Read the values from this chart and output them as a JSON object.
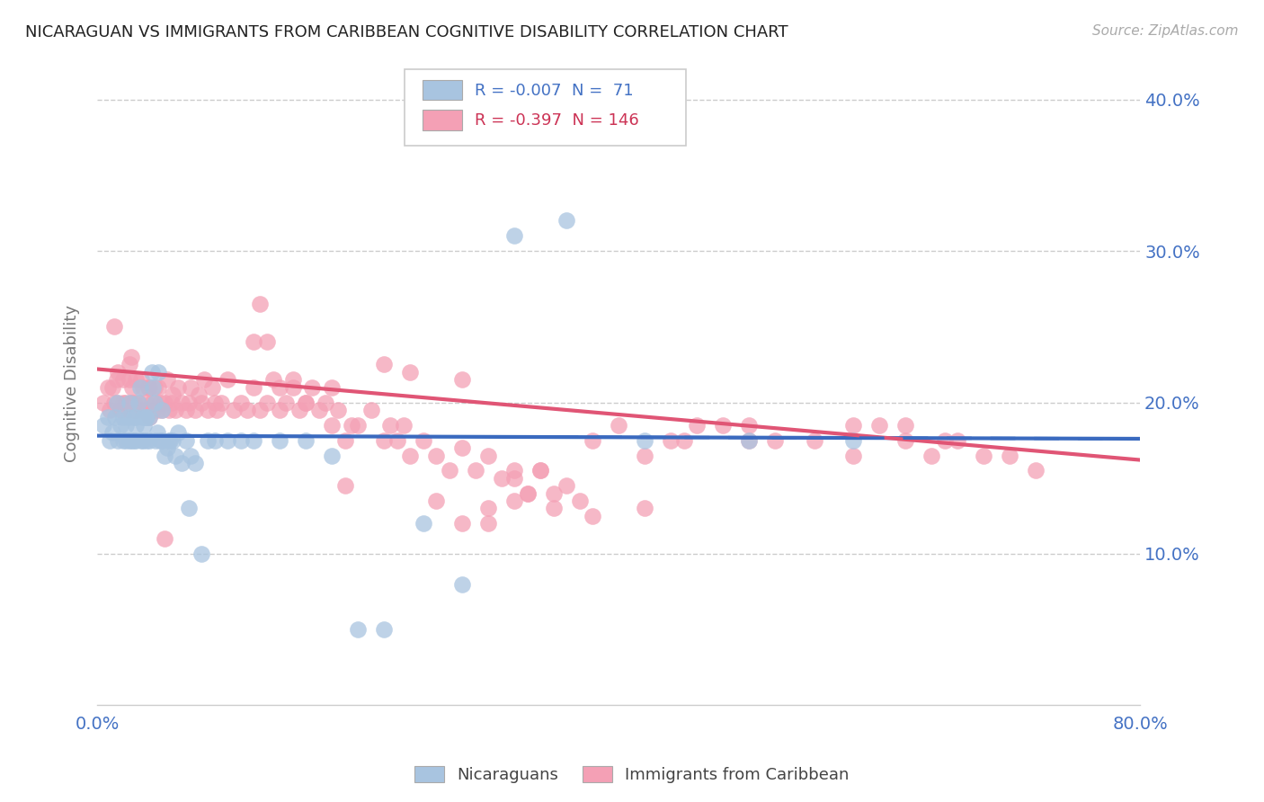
{
  "title": "NICARAGUAN VS IMMIGRANTS FROM CARIBBEAN COGNITIVE DISABILITY CORRELATION CHART",
  "source": "Source: ZipAtlas.com",
  "ylabel": "Cognitive Disability",
  "ylabel_right_ticks": [
    "40.0%",
    "30.0%",
    "20.0%",
    "10.0%"
  ],
  "ylabel_right_values": [
    0.4,
    0.3,
    0.2,
    0.1
  ],
  "legend_label1": "Nicaraguans",
  "legend_label2": "Immigrants from Caribbean",
  "R1": "-0.007",
  "N1": "71",
  "R2": "-0.397",
  "N2": "146",
  "color_blue": "#a8c4e0",
  "color_pink": "#f4a0b5",
  "color_blue_line": "#3a6abf",
  "color_pink_line": "#e05575",
  "color_text_blue": "#4472c4",
  "color_text_pink": "#cc3355",
  "xmin": 0.0,
  "xmax": 0.8,
  "ymin": 0.0,
  "ymax": 0.425,
  "blue_scatter_x": [
    0.005,
    0.008,
    0.01,
    0.012,
    0.014,
    0.015,
    0.016,
    0.018,
    0.02,
    0.02,
    0.022,
    0.022,
    0.024,
    0.025,
    0.025,
    0.026,
    0.028,
    0.028,
    0.03,
    0.03,
    0.03,
    0.032,
    0.033,
    0.034,
    0.035,
    0.035,
    0.036,
    0.037,
    0.038,
    0.038,
    0.04,
    0.04,
    0.042,
    0.043,
    0.044,
    0.045,
    0.046,
    0.047,
    0.048,
    0.05,
    0.05,
    0.052,
    0.054,
    0.055,
    0.056,
    0.058,
    0.06,
    0.062,
    0.065,
    0.068,
    0.07,
    0.072,
    0.075,
    0.08,
    0.085,
    0.09,
    0.1,
    0.11,
    0.12,
    0.14,
    0.16,
    0.18,
    0.2,
    0.22,
    0.25,
    0.28,
    0.32,
    0.36,
    0.42,
    0.5,
    0.58
  ],
  "blue_scatter_y": [
    0.185,
    0.19,
    0.175,
    0.18,
    0.19,
    0.2,
    0.175,
    0.185,
    0.19,
    0.175,
    0.175,
    0.185,
    0.19,
    0.175,
    0.2,
    0.175,
    0.19,
    0.175,
    0.185,
    0.19,
    0.175,
    0.2,
    0.21,
    0.175,
    0.19,
    0.175,
    0.185,
    0.19,
    0.175,
    0.19,
    0.19,
    0.175,
    0.22,
    0.21,
    0.2,
    0.175,
    0.18,
    0.22,
    0.175,
    0.195,
    0.175,
    0.165,
    0.17,
    0.175,
    0.175,
    0.175,
    0.165,
    0.18,
    0.16,
    0.175,
    0.13,
    0.165,
    0.16,
    0.1,
    0.175,
    0.175,
    0.175,
    0.175,
    0.175,
    0.175,
    0.175,
    0.165,
    0.05,
    0.05,
    0.12,
    0.08,
    0.31,
    0.32,
    0.175,
    0.175,
    0.175
  ],
  "pink_scatter_x": [
    0.005,
    0.008,
    0.01,
    0.012,
    0.013,
    0.015,
    0.016,
    0.018,
    0.02,
    0.02,
    0.022,
    0.024,
    0.025,
    0.026,
    0.027,
    0.028,
    0.03,
    0.03,
    0.032,
    0.033,
    0.034,
    0.035,
    0.036,
    0.037,
    0.038,
    0.039,
    0.04,
    0.04,
    0.042,
    0.043,
    0.044,
    0.045,
    0.046,
    0.047,
    0.048,
    0.05,
    0.052,
    0.054,
    0.055,
    0.057,
    0.058,
    0.06,
    0.062,
    0.065,
    0.068,
    0.07,
    0.072,
    0.075,
    0.078,
    0.08,
    0.082,
    0.085,
    0.088,
    0.09,
    0.092,
    0.095,
    0.1,
    0.105,
    0.11,
    0.115,
    0.12,
    0.125,
    0.13,
    0.135,
    0.14,
    0.145,
    0.15,
    0.155,
    0.16,
    0.165,
    0.17,
    0.175,
    0.18,
    0.185,
    0.19,
    0.195,
    0.2,
    0.21,
    0.22,
    0.225,
    0.23,
    0.235,
    0.24,
    0.25,
    0.26,
    0.27,
    0.28,
    0.29,
    0.3,
    0.31,
    0.32,
    0.33,
    0.34,
    0.35,
    0.36,
    0.38,
    0.4,
    0.42,
    0.44,
    0.46,
    0.5,
    0.52,
    0.55,
    0.58,
    0.6,
    0.62,
    0.64,
    0.66,
    0.68,
    0.7,
    0.72,
    0.45,
    0.48,
    0.025,
    0.028,
    0.013,
    0.016,
    0.026,
    0.052,
    0.35,
    0.26,
    0.3,
    0.32,
    0.34,
    0.37,
    0.42,
    0.19,
    0.33,
    0.22,
    0.18,
    0.24,
    0.28,
    0.15,
    0.16,
    0.14,
    0.13,
    0.125,
    0.12,
    0.28,
    0.3,
    0.32,
    0.38,
    0.62,
    0.65,
    0.58,
    0.5
  ],
  "pink_scatter_y": [
    0.2,
    0.21,
    0.195,
    0.21,
    0.2,
    0.215,
    0.2,
    0.195,
    0.215,
    0.2,
    0.2,
    0.195,
    0.215,
    0.2,
    0.21,
    0.2,
    0.195,
    0.215,
    0.2,
    0.195,
    0.215,
    0.21,
    0.195,
    0.2,
    0.195,
    0.21,
    0.19,
    0.21,
    0.2,
    0.195,
    0.21,
    0.2,
    0.195,
    0.21,
    0.2,
    0.195,
    0.2,
    0.215,
    0.195,
    0.2,
    0.205,
    0.195,
    0.21,
    0.2,
    0.195,
    0.2,
    0.21,
    0.195,
    0.205,
    0.2,
    0.215,
    0.195,
    0.21,
    0.2,
    0.195,
    0.2,
    0.215,
    0.195,
    0.2,
    0.195,
    0.21,
    0.195,
    0.2,
    0.215,
    0.195,
    0.2,
    0.21,
    0.195,
    0.2,
    0.21,
    0.195,
    0.2,
    0.185,
    0.195,
    0.175,
    0.185,
    0.185,
    0.195,
    0.175,
    0.185,
    0.175,
    0.185,
    0.165,
    0.175,
    0.165,
    0.155,
    0.17,
    0.155,
    0.165,
    0.15,
    0.155,
    0.14,
    0.155,
    0.14,
    0.145,
    0.175,
    0.185,
    0.165,
    0.175,
    0.185,
    0.185,
    0.175,
    0.175,
    0.185,
    0.185,
    0.175,
    0.165,
    0.175,
    0.165,
    0.165,
    0.155,
    0.175,
    0.185,
    0.225,
    0.195,
    0.25,
    0.22,
    0.23,
    0.11,
    0.13,
    0.135,
    0.12,
    0.15,
    0.155,
    0.135,
    0.13,
    0.145,
    0.14,
    0.225,
    0.21,
    0.22,
    0.215,
    0.215,
    0.2,
    0.21,
    0.24,
    0.265,
    0.24,
    0.12,
    0.13,
    0.135,
    0.125,
    0.185,
    0.175,
    0.165,
    0.175
  ],
  "blue_line_start_y": 0.178,
  "blue_line_end_y": 0.176,
  "pink_line_start_y": 0.222,
  "pink_line_end_y": 0.162
}
